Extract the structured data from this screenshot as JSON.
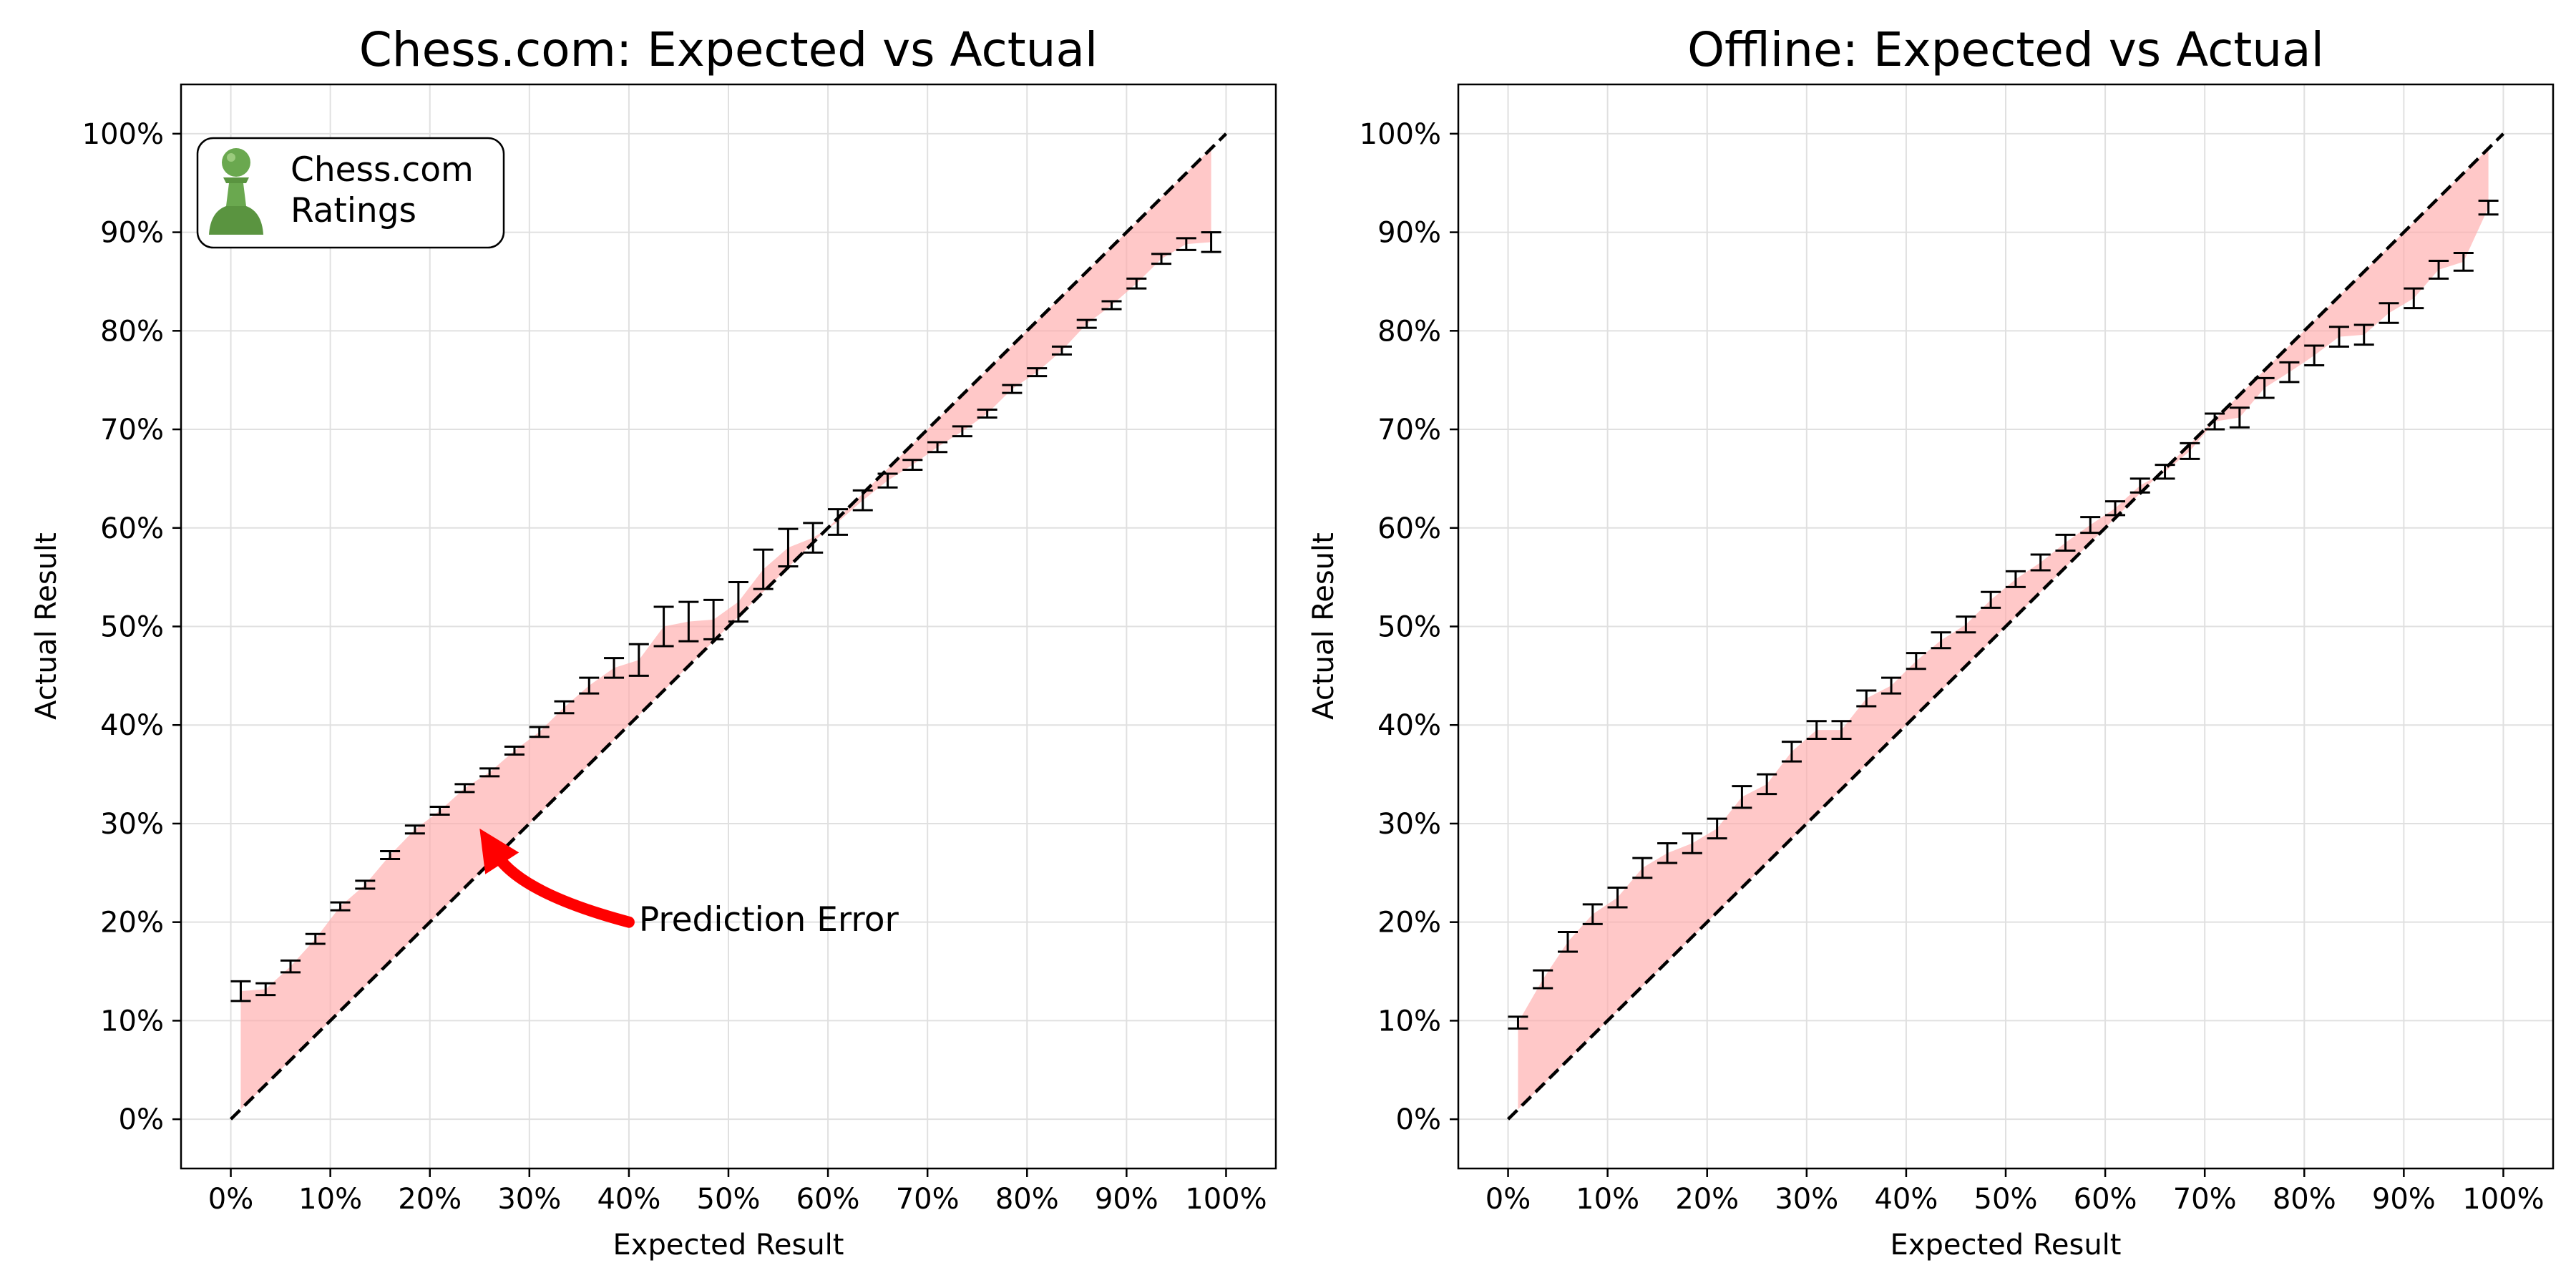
{
  "colors": {
    "fill": "#ffaaaa",
    "error_bar": "#000000",
    "diagonal": "#000000",
    "arrow": "#ff0000",
    "grid": "#e0e0e0",
    "legend_icon": "#6aa84f"
  },
  "chart_data": [
    {
      "type": "scatter",
      "title": "Chess.com: Expected vs Actual",
      "xlabel": "Expected Result",
      "ylabel": "Actual Result",
      "xlim": [
        -5,
        105
      ],
      "ylim": [
        -5,
        105
      ],
      "xticks": [
        0,
        10,
        20,
        30,
        40,
        50,
        60,
        70,
        80,
        90,
        100
      ],
      "yticks": [
        0,
        10,
        20,
        30,
        40,
        50,
        60,
        70,
        80,
        90,
        100
      ],
      "xtick_labels": [
        "0%",
        "10%",
        "20%",
        "30%",
        "40%",
        "50%",
        "60%",
        "70%",
        "80%",
        "90%",
        "100%"
      ],
      "ytick_labels": [
        "0%",
        "10%",
        "20%",
        "30%",
        "40%",
        "50%",
        "60%",
        "70%",
        "80%",
        "90%",
        "100%"
      ],
      "grid": true,
      "legend": {
        "position": "top-left",
        "text_line1": "Chess.com",
        "text_line2": "Ratings",
        "icon": "pawn-icon"
      },
      "annotation": {
        "text": "Prediction Error",
        "text_at": [
          41,
          20
        ],
        "arrow_from": [
          40,
          20
        ],
        "arrow_to": [
          25,
          29.5
        ]
      },
      "points": [
        {
          "x": 1,
          "y": 13,
          "lo": 12,
          "hi": 14
        },
        {
          "x": 3.5,
          "y": 13.2,
          "lo": 12.6,
          "hi": 13.8
        },
        {
          "x": 6,
          "y": 15.5,
          "lo": 14.9,
          "hi": 16.1
        },
        {
          "x": 8.5,
          "y": 18.3,
          "lo": 17.8,
          "hi": 18.8
        },
        {
          "x": 11,
          "y": 21.6,
          "lo": 21.2,
          "hi": 22
        },
        {
          "x": 13.5,
          "y": 23.8,
          "lo": 23.4,
          "hi": 24.2
        },
        {
          "x": 16,
          "y": 26.8,
          "lo": 26.4,
          "hi": 27.2
        },
        {
          "x": 18.5,
          "y": 29.4,
          "lo": 29,
          "hi": 29.8
        },
        {
          "x": 21,
          "y": 31.3,
          "lo": 30.9,
          "hi": 31.7
        },
        {
          "x": 23.5,
          "y": 33.6,
          "lo": 33.2,
          "hi": 34
        },
        {
          "x": 26,
          "y": 35.2,
          "lo": 34.8,
          "hi": 35.6
        },
        {
          "x": 28.5,
          "y": 37.4,
          "lo": 37,
          "hi": 37.8
        },
        {
          "x": 31,
          "y": 39.3,
          "lo": 38.8,
          "hi": 39.8
        },
        {
          "x": 33.5,
          "y": 41.8,
          "lo": 41.2,
          "hi": 42.4
        },
        {
          "x": 36,
          "y": 44,
          "lo": 43.2,
          "hi": 44.8
        },
        {
          "x": 38.5,
          "y": 45.8,
          "lo": 44.8,
          "hi": 46.8
        },
        {
          "x": 41,
          "y": 46.6,
          "lo": 45,
          "hi": 48.2
        },
        {
          "x": 43.5,
          "y": 50,
          "lo": 48,
          "hi": 52
        },
        {
          "x": 46,
          "y": 50.5,
          "lo": 48.5,
          "hi": 52.5
        },
        {
          "x": 48.5,
          "y": 50.7,
          "lo": 48.7,
          "hi": 52.7
        },
        {
          "x": 51,
          "y": 52.5,
          "lo": 50.5,
          "hi": 54.5
        },
        {
          "x": 53.5,
          "y": 55.8,
          "lo": 53.8,
          "hi": 57.8
        },
        {
          "x": 56,
          "y": 58,
          "lo": 56.1,
          "hi": 59.9
        },
        {
          "x": 58.5,
          "y": 59,
          "lo": 57.5,
          "hi": 60.5
        },
        {
          "x": 61,
          "y": 60.6,
          "lo": 59.3,
          "hi": 61.9
        },
        {
          "x": 63.5,
          "y": 62.8,
          "lo": 61.8,
          "hi": 63.8
        },
        {
          "x": 66,
          "y": 64.8,
          "lo": 64.1,
          "hi": 65.5
        },
        {
          "x": 68.5,
          "y": 66.4,
          "lo": 65.9,
          "hi": 66.9
        },
        {
          "x": 71,
          "y": 68.2,
          "lo": 67.7,
          "hi": 68.7
        },
        {
          "x": 73.5,
          "y": 69.8,
          "lo": 69.3,
          "hi": 70.3
        },
        {
          "x": 76,
          "y": 71.6,
          "lo": 71.2,
          "hi": 72
        },
        {
          "x": 78.5,
          "y": 74.1,
          "lo": 73.7,
          "hi": 74.5
        },
        {
          "x": 81,
          "y": 75.8,
          "lo": 75.4,
          "hi": 76.2
        },
        {
          "x": 83.5,
          "y": 78,
          "lo": 77.6,
          "hi": 78.4
        },
        {
          "x": 86,
          "y": 80.7,
          "lo": 80.3,
          "hi": 81.1
        },
        {
          "x": 88.5,
          "y": 82.6,
          "lo": 82.2,
          "hi": 83
        },
        {
          "x": 91,
          "y": 84.8,
          "lo": 84.3,
          "hi": 85.3
        },
        {
          "x": 93.5,
          "y": 87.3,
          "lo": 86.8,
          "hi": 87.8
        },
        {
          "x": 96,
          "y": 88.8,
          "lo": 88.2,
          "hi": 89.4
        },
        {
          "x": 98.5,
          "y": 89,
          "lo": 88,
          "hi": 90
        }
      ]
    },
    {
      "type": "scatter",
      "title": "Offline: Expected vs Actual",
      "xlabel": "Expected Result",
      "ylabel": "Actual Result",
      "xlim": [
        -5,
        105
      ],
      "ylim": [
        -5,
        105
      ],
      "xticks": [
        0,
        10,
        20,
        30,
        40,
        50,
        60,
        70,
        80,
        90,
        100
      ],
      "yticks": [
        0,
        10,
        20,
        30,
        40,
        50,
        60,
        70,
        80,
        90,
        100
      ],
      "xtick_labels": [
        "0%",
        "10%",
        "20%",
        "30%",
        "40%",
        "50%",
        "60%",
        "70%",
        "80%",
        "90%",
        "100%"
      ],
      "ytick_labels": [
        "0%",
        "10%",
        "20%",
        "30%",
        "40%",
        "50%",
        "60%",
        "70%",
        "80%",
        "90%",
        "100%"
      ],
      "grid": true,
      "points": [
        {
          "x": 1,
          "y": 9.8,
          "lo": 9.2,
          "hi": 10.4
        },
        {
          "x": 3.5,
          "y": 14.2,
          "lo": 13.3,
          "hi": 15.1
        },
        {
          "x": 6,
          "y": 18,
          "lo": 17,
          "hi": 19
        },
        {
          "x": 8.5,
          "y": 20.8,
          "lo": 19.8,
          "hi": 21.8
        },
        {
          "x": 11,
          "y": 22.5,
          "lo": 21.5,
          "hi": 23.5
        },
        {
          "x": 13.5,
          "y": 25.5,
          "lo": 24.5,
          "hi": 26.5
        },
        {
          "x": 16,
          "y": 27,
          "lo": 26,
          "hi": 28
        },
        {
          "x": 18.5,
          "y": 28,
          "lo": 27,
          "hi": 29
        },
        {
          "x": 21,
          "y": 29.5,
          "lo": 28.5,
          "hi": 30.5
        },
        {
          "x": 23.5,
          "y": 32.7,
          "lo": 31.6,
          "hi": 33.8
        },
        {
          "x": 26,
          "y": 34,
          "lo": 33,
          "hi": 35
        },
        {
          "x": 28.5,
          "y": 37.3,
          "lo": 36.3,
          "hi": 38.3
        },
        {
          "x": 31,
          "y": 39.5,
          "lo": 38.6,
          "hi": 40.4
        },
        {
          "x": 33.5,
          "y": 39.5,
          "lo": 38.6,
          "hi": 40.4
        },
        {
          "x": 36,
          "y": 42.7,
          "lo": 41.9,
          "hi": 43.5
        },
        {
          "x": 38.5,
          "y": 44,
          "lo": 43.2,
          "hi": 44.8
        },
        {
          "x": 41,
          "y": 46.5,
          "lo": 45.7,
          "hi": 47.3
        },
        {
          "x": 43.5,
          "y": 48.6,
          "lo": 47.8,
          "hi": 49.4
        },
        {
          "x": 46,
          "y": 50.2,
          "lo": 49.4,
          "hi": 51
        },
        {
          "x": 48.5,
          "y": 52.7,
          "lo": 51.9,
          "hi": 53.5
        },
        {
          "x": 51,
          "y": 54.8,
          "lo": 54,
          "hi": 55.6
        },
        {
          "x": 53.5,
          "y": 56.5,
          "lo": 55.7,
          "hi": 57.3
        },
        {
          "x": 56,
          "y": 58.5,
          "lo": 57.7,
          "hi": 59.3
        },
        {
          "x": 58.5,
          "y": 60.3,
          "lo": 59.5,
          "hi": 61.1
        },
        {
          "x": 61,
          "y": 62,
          "lo": 61.3,
          "hi": 62.7
        },
        {
          "x": 63.5,
          "y": 64.3,
          "lo": 63.6,
          "hi": 65
        },
        {
          "x": 66,
          "y": 65.7,
          "lo": 65,
          "hi": 66.4
        },
        {
          "x": 68.5,
          "y": 67.8,
          "lo": 67,
          "hi": 68.6
        },
        {
          "x": 71,
          "y": 70.8,
          "lo": 70,
          "hi": 71.6
        },
        {
          "x": 73.5,
          "y": 71.2,
          "lo": 70.2,
          "hi": 72.2
        },
        {
          "x": 76,
          "y": 74.2,
          "lo": 73.2,
          "hi": 75.2
        },
        {
          "x": 78.5,
          "y": 75.8,
          "lo": 74.8,
          "hi": 76.8
        },
        {
          "x": 81,
          "y": 77.5,
          "lo": 76.5,
          "hi": 78.5
        },
        {
          "x": 83.5,
          "y": 79.4,
          "lo": 78.4,
          "hi": 80.4
        },
        {
          "x": 86,
          "y": 79.6,
          "lo": 78.6,
          "hi": 80.6
        },
        {
          "x": 88.5,
          "y": 81.8,
          "lo": 80.8,
          "hi": 82.8
        },
        {
          "x": 91,
          "y": 83.3,
          "lo": 82.3,
          "hi": 84.3
        },
        {
          "x": 93.5,
          "y": 86.2,
          "lo": 85.3,
          "hi": 87.1
        },
        {
          "x": 96,
          "y": 87,
          "lo": 86.1,
          "hi": 87.9
        },
        {
          "x": 98.5,
          "y": 92.5,
          "lo": 91.8,
          "hi": 93.2
        }
      ]
    }
  ]
}
